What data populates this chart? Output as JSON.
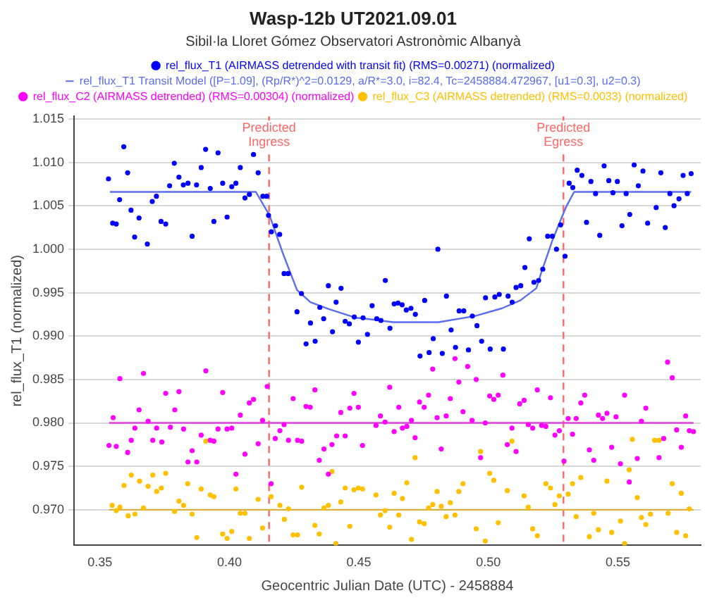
{
  "chart_data": {
    "type": "scatter",
    "title": "Wasp-12b UT2021.09.01",
    "subtitle": "Sibil·la Lloret Gómez Observatori Astronòmic Albanyà",
    "xlabel": "Geocentric Julian Date (UTC) - 2458884",
    "ylabel": "rel_flux_T1 (normalized)",
    "xlim": [
      0.34,
      0.582
    ],
    "ylim": [
      0.9659,
      1.0153
    ],
    "xticks": [
      {
        "value": 0.35,
        "label": "0.35"
      },
      {
        "value": 0.4,
        "label": "0.40"
      },
      {
        "value": 0.45,
        "label": "0.45"
      },
      {
        "value": 0.5,
        "label": "0.50"
      },
      {
        "value": 0.55,
        "label": "0.55"
      }
    ],
    "yticks": [
      {
        "value": 0.97,
        "label": "0.970"
      },
      {
        "value": 0.975,
        "label": "0.975"
      },
      {
        "value": 0.98,
        "label": "0.980"
      },
      {
        "value": 0.985,
        "label": "0.985"
      },
      {
        "value": 0.99,
        "label": "0.990"
      },
      {
        "value": 0.995,
        "label": "0.995"
      },
      {
        "value": 1.0,
        "label": "1.000"
      },
      {
        "value": 1.005,
        "label": "1.005"
      },
      {
        "value": 1.01,
        "label": "1.010"
      },
      {
        "value": 1.015,
        "label": "1.015"
      }
    ],
    "grid": "y",
    "legend": "top",
    "series": [
      {
        "name": "rel_flux_T1 (AIRMASS detrended with transit fit) (RMS=0.00271) (normalized)",
        "type": "scatter",
        "marker": "circle",
        "color": "#0000ff",
        "x": [
          0.3533,
          0.3549,
          0.3563,
          0.3576,
          0.3592,
          0.3607,
          0.362,
          0.3634,
          0.3651,
          0.3683,
          0.3702,
          0.3718,
          0.3736,
          0.3754,
          0.3769,
          0.3787,
          0.3805,
          0.3822,
          0.384,
          0.3856,
          0.3873,
          0.3891,
          0.3908,
          0.3926,
          0.394,
          0.3956,
          0.3974,
          0.3991,
          0.4009,
          0.4025,
          0.4042,
          0.406,
          0.4077,
          0.4093,
          0.4111,
          0.4129,
          0.4144,
          0.4151,
          0.4162,
          0.4178,
          0.4194,
          0.4211,
          0.4227,
          0.4261,
          0.4278,
          0.4296,
          0.4313,
          0.4331,
          0.4349,
          0.4364,
          0.4382,
          0.4398,
          0.4412,
          0.4431,
          0.4447,
          0.4463,
          0.4482,
          0.4498,
          0.4516,
          0.4533,
          0.4551,
          0.4569,
          0.4585,
          0.4602,
          0.462,
          0.4636,
          0.4651,
          0.4667,
          0.4683,
          0.4701,
          0.4718,
          0.4736,
          0.4754,
          0.4771,
          0.4787,
          0.4805,
          0.4822,
          0.4838,
          0.4856,
          0.4873,
          0.4887,
          0.4905,
          0.4923,
          0.4938,
          0.4956,
          0.4974,
          0.4989,
          0.5007,
          0.5025,
          0.5042,
          0.5058,
          0.5076,
          0.5092,
          0.5107,
          0.5125,
          0.5141,
          0.5158,
          0.5176,
          0.5194,
          0.521,
          0.5229,
          0.5247,
          0.5263,
          0.5279,
          0.5296,
          0.5312,
          0.5326,
          0.5343,
          0.5361,
          0.5379,
          0.5396,
          0.5414,
          0.543,
          0.5447,
          0.5465,
          0.5481,
          0.5498,
          0.5516,
          0.5532,
          0.5546,
          0.5563,
          0.5579,
          0.5597,
          0.5615,
          0.5648,
          0.5666,
          0.5683,
          0.5701,
          0.5717,
          0.5736,
          0.5752,
          0.5768,
          0.5783
        ],
        "values": [
          1.0081,
          1.003,
          1.0029,
          1.0057,
          1.0118,
          1.0088,
          1.0045,
          1.0014,
          1.0036,
          1.0006,
          1.0055,
          1.0061,
          1.0032,
          1.0029,
          1.0073,
          1.0099,
          1.0083,
          1.0074,
          1.0076,
          1.0015,
          1.0074,
          1.0094,
          1.0115,
          1.007,
          1.0032,
          1.0111,
          1.0076,
          1.0037,
          1.0072,
          1.0076,
          1.0094,
          1.0059,
          1.0063,
          1.0109,
          1.0088,
          1.0061,
          1.0061,
          1.0039,
          1.002,
          1.0027,
          1.0017,
          0.9972,
          0.9972,
          0.9928,
          0.9949,
          0.9891,
          0.9915,
          0.9894,
          0.9933,
          0.992,
          0.9958,
          0.9905,
          0.9939,
          0.9955,
          0.9917,
          0.9914,
          0.9922,
          0.9893,
          0.9921,
          0.9902,
          0.9935,
          0.992,
          0.9918,
          0.9964,
          0.9909,
          0.9937,
          0.9938,
          0.9936,
          0.993,
          0.9932,
          0.9925,
          0.9877,
          0.9941,
          0.9881,
          0.9897,
          1.0,
          0.988,
          0.9946,
          0.9907,
          0.9887,
          0.9929,
          0.9929,
          0.9884,
          0.9923,
          0.9912,
          0.9894,
          0.9944,
          0.9885,
          0.9945,
          0.9948,
          0.9885,
          0.9946,
          0.9939,
          0.9956,
          0.9958,
          0.9979,
          1.0012,
          0.9962,
          0.9964,
          0.9977,
          1.0015,
          1.0015,
          1.0,
          1.0028,
          0.9992,
          1.0076,
          1.0071,
          1.0091,
          1.0085,
          1.0031,
          1.0078,
          1.0064,
          1.0016,
          1.0096,
          1.0079,
          1.0065,
          1.0078,
          1.0027,
          1.0064,
          1.004,
          1.0097,
          1.0073,
          1.009,
          1.003,
          1.0048,
          1.0088,
          1.0025,
          1.0064,
          1.005,
          1.0058,
          1.0085,
          1.0064,
          1.0087
        ]
      },
      {
        "name": "rel_flux_T1 Transit Model ([P=1.09], (Rp/R*)^2=0.0129, a/R*=3.0, i=82.4, Tc=2458884.472967, [u1=0.3], u2=0.3)",
        "type": "line",
        "marker": "none",
        "color": "#5a6cf0",
        "x": [
          0.3539,
          0.4102,
          0.4155,
          0.4208,
          0.4261,
          0.4313,
          0.4384,
          0.4489,
          0.4525,
          0.4632,
          0.4808,
          0.4947,
          0.5053,
          0.5123,
          0.5185,
          0.5202,
          0.5247,
          0.5299,
          0.5331,
          0.5783
        ],
        "values": [
          1.0066,
          1.0066,
          1.0039,
          0.9994,
          0.9953,
          0.9939,
          0.9931,
          0.9921,
          0.992,
          0.9916,
          0.9916,
          0.9923,
          0.9932,
          0.9941,
          0.9955,
          0.9971,
          1.001,
          1.0048,
          1.0066,
          1.0066
        ]
      },
      {
        "name": "rel_flux_C2 (AIRMASS detrended) (RMS=0.00304) (normalized)",
        "type": "scatter",
        "marker": "circle",
        "color": "#ff00ff",
        "x": [
          0.3535,
          0.3551,
          0.3563,
          0.3577,
          0.3607,
          0.3621,
          0.3635,
          0.3651,
          0.3668,
          0.3686,
          0.3704,
          0.3719,
          0.3739,
          0.3754,
          0.3772,
          0.3789,
          0.3805,
          0.3823,
          0.384,
          0.3856,
          0.3874,
          0.3891,
          0.3909,
          0.3926,
          0.394,
          0.3956,
          0.3974,
          0.3991,
          0.4009,
          0.4025,
          0.4042,
          0.406,
          0.4077,
          0.4093,
          0.4111,
          0.4128,
          0.4146,
          0.4161,
          0.4177,
          0.4195,
          0.4211,
          0.4228,
          0.4246,
          0.4263,
          0.4279,
          0.4296,
          0.4312,
          0.433,
          0.4347,
          0.4365,
          0.4382,
          0.4396,
          0.4414,
          0.443,
          0.4447,
          0.4465,
          0.4481,
          0.4498,
          0.4514,
          0.4566,
          0.4583,
          0.4601,
          0.4619,
          0.4636,
          0.4654,
          0.4668,
          0.4685,
          0.4703,
          0.4717,
          0.4734,
          0.4752,
          0.4769,
          0.4785,
          0.4802,
          0.4818,
          0.4837,
          0.4853,
          0.4871,
          0.4886,
          0.4902,
          0.492,
          0.4937,
          0.4953,
          0.497,
          0.4988,
          0.5005,
          0.5021,
          0.5038,
          0.5056,
          0.5073,
          0.5091,
          0.5107,
          0.5121,
          0.5138,
          0.5154,
          0.5171,
          0.5189,
          0.5206,
          0.5222,
          0.524,
          0.5257,
          0.5274,
          0.5292,
          0.5308,
          0.5325,
          0.5339,
          0.5357,
          0.5372,
          0.539,
          0.5407,
          0.5425,
          0.5441,
          0.5458,
          0.5476,
          0.5493,
          0.551,
          0.5526,
          0.5544,
          0.5575,
          0.5591,
          0.5608,
          0.5659,
          0.5677,
          0.5692,
          0.571,
          0.5727,
          0.5745,
          0.5762,
          0.5776,
          0.5792
        ],
        "values": [
          0.9774,
          0.9806,
          0.9773,
          0.9851,
          0.9766,
          0.978,
          0.9794,
          0.9815,
          0.9857,
          0.9802,
          0.978,
          0.9794,
          0.9778,
          0.9834,
          0.9795,
          0.9815,
          0.9836,
          0.9793,
          0.9755,
          0.9768,
          0.9755,
          0.9786,
          0.986,
          0.978,
          0.9779,
          0.9793,
          0.9835,
          0.9793,
          0.9794,
          0.9741,
          0.9809,
          0.9764,
          0.9823,
          0.9827,
          0.9776,
          0.9803,
          0.9842,
          0.973,
          0.9782,
          0.9791,
          0.9798,
          0.978,
          0.9828,
          0.978,
          0.9779,
          0.9819,
          0.9818,
          0.9838,
          0.9757,
          0.977,
          0.9741,
          0.9775,
          0.9785,
          0.9812,
          0.9785,
          0.9817,
          0.9834,
          0.9818,
          0.9774,
          0.9797,
          0.9808,
          0.9801,
          0.9841,
          0.979,
          0.9818,
          0.9794,
          0.9796,
          0.9803,
          0.9783,
          0.9824,
          0.9818,
          0.9832,
          0.9862,
          0.9806,
          0.977,
          0.9808,
          0.9828,
          0.9874,
          0.9847,
          0.9813,
          0.9865,
          0.9803,
          0.985,
          0.976,
          0.98,
          0.9831,
          0.9827,
          0.9832,
          0.9855,
          0.9775,
          0.9794,
          0.9767,
          0.9822,
          0.9826,
          0.9798,
          0.9794,
          0.9838,
          0.9797,
          0.9796,
          0.9829,
          0.9786,
          0.9791,
          0.9756,
          0.9805,
          0.9787,
          0.9805,
          0.9823,
          0.9832,
          0.9769,
          0.9757,
          0.9809,
          0.9805,
          0.9811,
          0.9772,
          0.9807,
          0.9753,
          0.9832,
          0.9732,
          0.9759,
          0.9802,
          0.9817,
          0.976,
          0.9782,
          0.987,
          0.9852,
          0.9792,
          0.9772,
          0.9808,
          0.9791,
          0.979
        ]
      },
      {
        "name": "rel_flux_C3 (AIRMASS detrended) (RMS=0.0033) (normalized)",
        "type": "scatter",
        "marker": "circle",
        "color": "#ffc000",
        "x": [
          0.3547,
          0.3563,
          0.3577,
          0.3593,
          0.3609,
          0.3621,
          0.3635,
          0.3653,
          0.3668,
          0.3686,
          0.3704,
          0.3719,
          0.3737,
          0.3754,
          0.3788,
          0.3805,
          0.3823,
          0.3839,
          0.3856,
          0.3874,
          0.3891,
          0.3909,
          0.3926,
          0.394,
          0.3974,
          0.3991,
          0.4009,
          0.4025,
          0.4042,
          0.406,
          0.4077,
          0.4111,
          0.4128,
          0.4161,
          0.4195,
          0.4212,
          0.4228,
          0.4246,
          0.4263,
          0.4279,
          0.433,
          0.4347,
          0.4365,
          0.4382,
          0.4396,
          0.4411,
          0.443,
          0.4447,
          0.4465,
          0.4481,
          0.4498,
          0.4514,
          0.4566,
          0.4583,
          0.4601,
          0.4619,
          0.4636,
          0.4654,
          0.4668,
          0.4685,
          0.4703,
          0.4717,
          0.4734,
          0.4752,
          0.4769,
          0.4785,
          0.4802,
          0.4818,
          0.4837,
          0.4853,
          0.4871,
          0.4886,
          0.4902,
          0.4953,
          0.497,
          0.4988,
          0.5005,
          0.5021,
          0.5038,
          0.5073,
          0.5091,
          0.5138,
          0.5154,
          0.5171,
          0.5189,
          0.5222,
          0.524,
          0.5257,
          0.5274,
          0.5308,
          0.5325,
          0.5339,
          0.5357,
          0.539,
          0.5407,
          0.5425,
          0.5458,
          0.5476,
          0.551,
          0.5526,
          0.5544,
          0.5556,
          0.5575,
          0.5591,
          0.5608,
          0.5626,
          0.5642,
          0.5659,
          0.5694,
          0.571,
          0.5727,
          0.5745,
          0.5762,
          0.5776
        ],
        "values": [
          0.9705,
          0.9699,
          0.9703,
          0.9728,
          0.9693,
          0.974,
          0.9695,
          0.9733,
          0.9702,
          0.9727,
          0.974,
          0.9721,
          0.9725,
          0.9742,
          0.9698,
          0.971,
          0.9705,
          0.973,
          0.9695,
          0.9668,
          0.9724,
          0.9779,
          0.9717,
          0.9715,
          0.9672,
          0.9667,
          0.9675,
          0.9724,
          0.9696,
          0.9696,
          0.9667,
          0.9712,
          0.9679,
          0.9715,
          0.9705,
          0.9689,
          0.9701,
          0.9671,
          0.9671,
          0.9726,
          0.9682,
          0.9672,
          0.9702,
          0.9705,
          0.9744,
          0.9661,
          0.9709,
          0.9725,
          0.9681,
          0.9723,
          0.9725,
          0.9724,
          0.9717,
          0.9694,
          0.9699,
          0.968,
          0.9719,
          0.9694,
          0.9713,
          0.9731,
          0.9666,
          0.976,
          0.9686,
          0.9684,
          0.9702,
          0.9706,
          0.9721,
          0.9704,
          0.9692,
          0.9708,
          0.9694,
          0.9721,
          0.973,
          0.9678,
          0.9767,
          0.9664,
          0.9742,
          0.9734,
          0.9685,
          0.9722,
          0.9779,
          0.9716,
          0.9703,
          0.9678,
          0.967,
          0.973,
          0.9725,
          0.9706,
          0.9716,
          0.9718,
          0.973,
          0.9692,
          0.9737,
          0.9669,
          0.9696,
          0.9677,
          0.9733,
          0.9674,
          0.9687,
          0.9661,
          0.9746,
          0.9781,
          0.9714,
          0.9691,
          0.9683,
          0.9695,
          0.978,
          0.978,
          0.9696,
          0.973,
          0.9674,
          0.9719,
          0.967,
          0.9701
        ]
      },
      {
        "type": "line",
        "marker": "none",
        "color": "#e040e0",
        "x": [
          0.3535,
          0.5792
        ],
        "values": [
          0.98,
          0.98
        ]
      },
      {
        "type": "line",
        "marker": "none",
        "color": "#d8b040",
        "x": [
          0.3535,
          0.5792
        ],
        "values": [
          0.97,
          0.97
        ]
      }
    ],
    "ref_lines": [
      {
        "axis": "x",
        "value": 0.4153,
        "label": "Predicted Ingress",
        "color": "#ff6666",
        "line_style": "dashed"
      },
      {
        "axis": "x",
        "value": 0.529,
        "label": "Predicted Egress",
        "color": "#ff6666",
        "line_style": "dashed"
      }
    ]
  }
}
